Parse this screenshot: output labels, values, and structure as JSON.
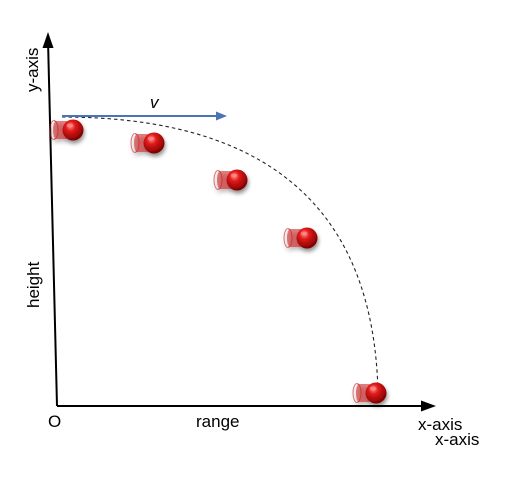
{
  "labels": {
    "y_axis": "y-axis",
    "velocity": "v",
    "height": "height",
    "origin": "O",
    "range": "range",
    "x_axis_1": "x-axis",
    "x_axis_2": "x-axis"
  },
  "colors": {
    "axis": "#000000",
    "velocity_arrow": "#4a74b4",
    "trajectory": "#222222",
    "ball": "#d81414",
    "ball_dark": "#8e0000",
    "ball_highlight": "#ff8a8a",
    "streak": "#c81818"
  },
  "icons": {
    "ball": "projectile-ball-icon",
    "motion_streaks": "motion-blur-icon"
  }
}
